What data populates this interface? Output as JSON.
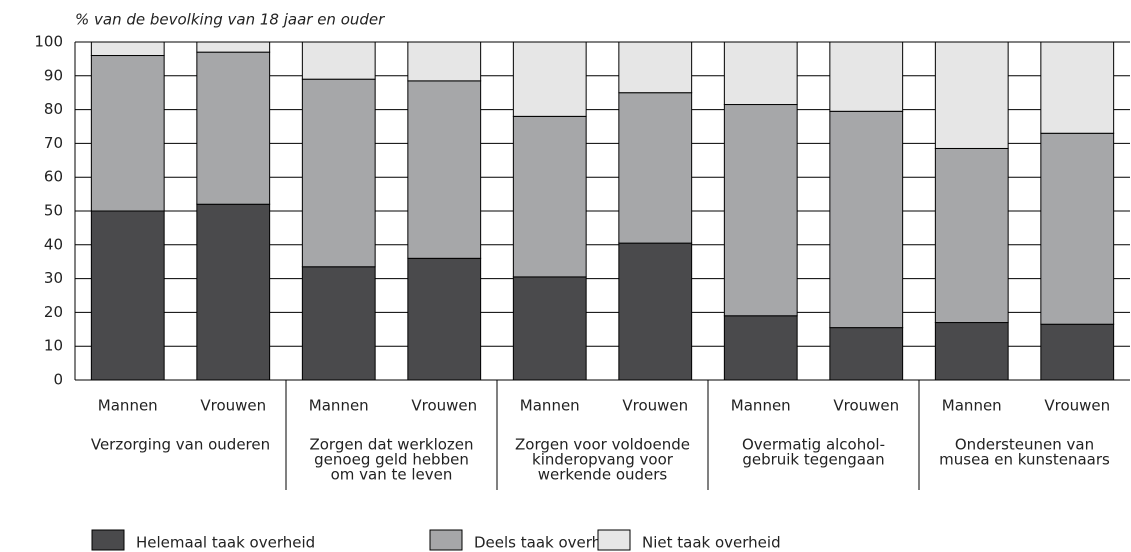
{
  "chart_data": {
    "type": "stacked_bar",
    "ylabel": "% van de bevolking van 18 jaar en ouder",
    "categories": [
      "Mannen",
      "Vrouwen",
      "Mannen",
      "Vrouwen",
      "Mannen",
      "Vrouwen",
      "Mannen",
      "Vrouwen",
      "Mannen",
      "Vrouwen"
    ],
    "groups": [
      [
        "Verzorging van ouderen"
      ],
      [
        "Zorgen dat werklozen",
        "genoeg geld hebben",
        "om van te leven"
      ],
      [
        "Zorgen voor voldoende",
        "kinderopvang voor",
        "werkende ouders"
      ],
      [
        "Overmatig alcohol-",
        "gebruik tegengaan"
      ],
      [
        "Ondersteunen van",
        "musea en kunstenaars"
      ]
    ],
    "series": [
      {
        "name": "Helemaal taak overheid",
        "color": "#4a4a4c",
        "values": [
          50,
          52,
          33.5,
          36,
          30.5,
          40.5,
          19,
          15.5,
          17,
          16.5
        ]
      },
      {
        "name": "Deels taak overheid",
        "color": "#a6a7a9",
        "values": [
          46,
          45,
          55.5,
          52.5,
          47.5,
          44.5,
          62.5,
          64,
          51.5,
          56.5
        ]
      },
      {
        "name": "Niet taak overheid",
        "color": "#e6e6e6",
        "values": [
          4,
          3,
          11,
          11.5,
          22,
          15,
          18.5,
          20.5,
          31.5,
          27
        ]
      }
    ],
    "ylim": [
      0,
      100
    ],
    "yticks": [
      0,
      10,
      20,
      30,
      40,
      50,
      60,
      70,
      80,
      90,
      100
    ],
    "grid": true,
    "legend": "bottom"
  }
}
